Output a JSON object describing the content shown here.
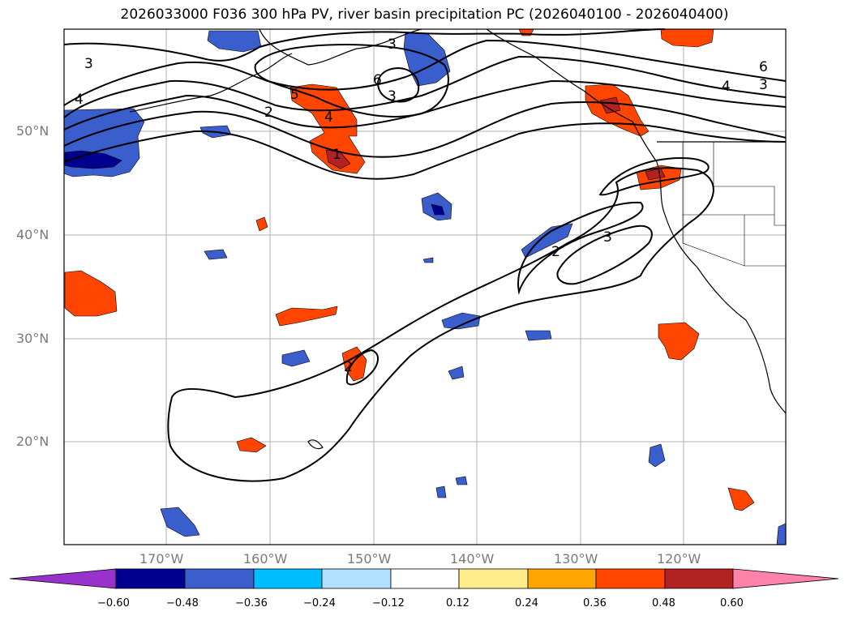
{
  "title": "2026033000 F036 300 hPa PV, river basin precipitation PC (2026040100 - 2026040400)",
  "lat_labels": [
    "50°N",
    "40°N",
    "30°N",
    "20°N"
  ],
  "lon_labels": [
    "170°W",
    "160°W",
    "150°W",
    "140°W",
    "130°W",
    "120°W"
  ],
  "colorbar": {
    "ticks": [
      "−0.60",
      "−0.48",
      "−0.36",
      "−0.24",
      "−0.12",
      "0.12",
      "0.24",
      "0.36",
      "0.48",
      "0.60"
    ],
    "colors": [
      "#9932cc",
      "#000090",
      "#3a5fcd",
      "#00bfff",
      "#b0e2ff",
      "#ffffff",
      "#ffec8b",
      "#ffa500",
      "#ff4500",
      "#b22222",
      "#ff82ab"
    ]
  },
  "contour_labels": [
    "3",
    "4",
    "6",
    "4",
    "5",
    "3",
    "6",
    "2",
    "3",
    "4",
    "1",
    "2",
    "3",
    "2",
    "3"
  ]
}
